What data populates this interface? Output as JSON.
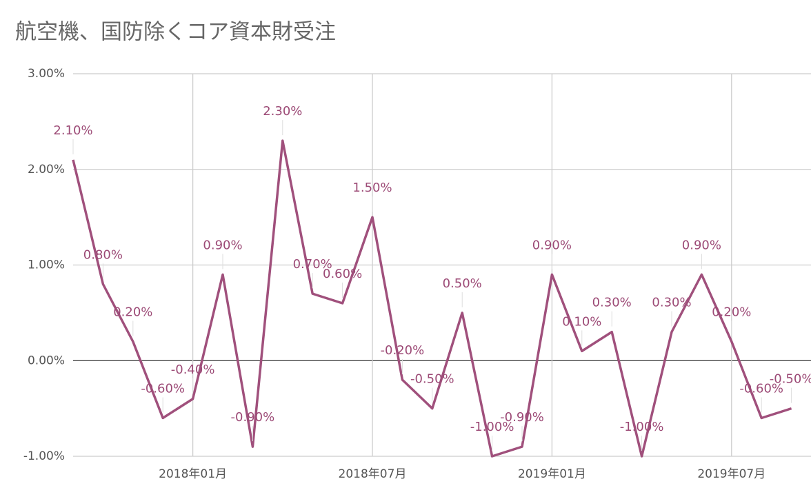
{
  "chart_data": {
    "type": "line",
    "title": "航空機、国防除くコア資本財受注",
    "categories": [
      null,
      null,
      null,
      null,
      "2018年01月",
      null,
      null,
      null,
      null,
      null,
      "2018年07月",
      null,
      null,
      null,
      null,
      null,
      "2019年01月",
      null,
      null,
      null,
      null,
      null,
      "2019年07月",
      null,
      null
    ],
    "series": [
      {
        "name": "航空機、国防除くコア資本財受注",
        "color": "#a0507c",
        "values": [
          2.1,
          0.8,
          0.2,
          -0.6,
          -0.4,
          0.9,
          -0.9,
          2.3,
          0.7,
          0.6,
          1.5,
          -0.2,
          -0.5,
          0.5,
          -1.0,
          -0.9,
          0.9,
          0.1,
          0.3,
          -1.0,
          0.3,
          0.9,
          0.2,
          -0.6,
          -0.5
        ],
        "value_labels": [
          "2.10%",
          "0.80%",
          "0.20%",
          "-0.60%",
          "-0.40%",
          "0.90%",
          "-0.90%",
          "2.30%",
          "0.70%",
          "0.60%",
          "1.50%",
          "-0.20%",
          "-0.50%",
          "0.50%",
          "-1.00%",
          "-0.90%",
          "0.90%",
          "0.10%",
          "0.30%",
          "-1.00%",
          "0.30%",
          "0.90%",
          "0.20%",
          "-0.60%",
          "-0.50%"
        ]
      }
    ],
    "ylim": [
      -1,
      3
    ],
    "yticks": [
      {
        "value": -1,
        "label": "-1.00%"
      },
      {
        "value": 0,
        "label": "0.00%"
      },
      {
        "value": 1,
        "label": "1.00%"
      },
      {
        "value": 2,
        "label": "2.00%"
      },
      {
        "value": 3,
        "label": "3.00%"
      }
    ],
    "grid": true
  }
}
